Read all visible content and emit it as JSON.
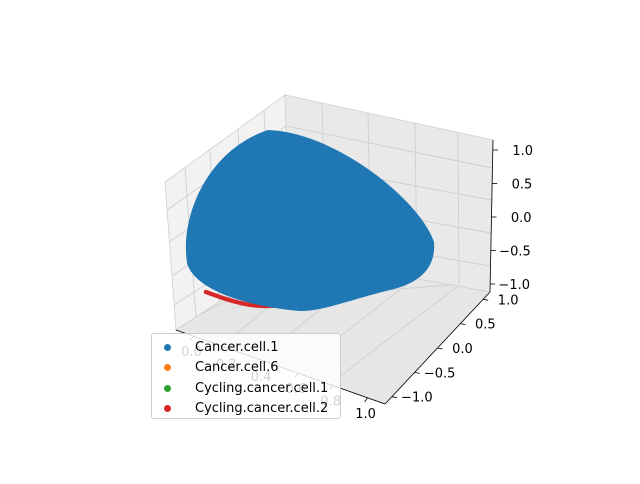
{
  "chart_data": {
    "type": "scatter",
    "projection": "3d",
    "title": "",
    "xlabel": "",
    "ylabel": "",
    "zlabel": "",
    "xlim": [
      0.0,
      1.0
    ],
    "ylim": [
      -1.0,
      1.0
    ],
    "zlim": [
      -1.0,
      1.0
    ],
    "x_ticks": [
      "0.0",
      "0.2",
      "0.4",
      "0.6",
      "0.8",
      "1.0"
    ],
    "y_ticks": [
      "−1.0",
      "−0.5",
      "0.0",
      "0.5",
      "1.0"
    ],
    "z_ticks": [
      "−1.0",
      "−0.5",
      "0.0",
      "0.5",
      "1.0"
    ],
    "grid": true,
    "legend_position": "lower-left",
    "series": [
      {
        "name": "Cancer.cell.1",
        "color": "#1f77b4"
      },
      {
        "name": "Cancer.cell.6",
        "color": "#ff7f0e"
      },
      {
        "name": "Cycling.cancer.cell.1",
        "color": "#2ca02c"
      },
      {
        "name": "Cycling.cancer.cell.2",
        "color": "#d62728"
      }
    ]
  }
}
